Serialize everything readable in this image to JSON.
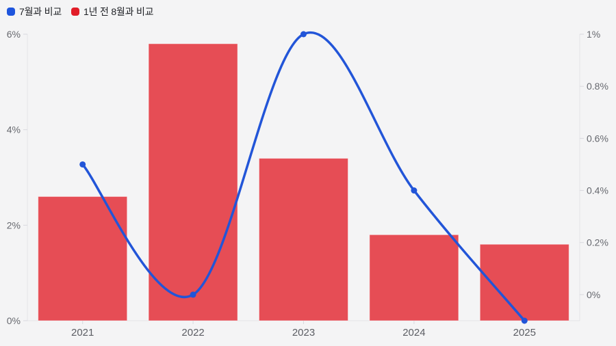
{
  "chart_data": {
    "type": "combo",
    "title": "",
    "categories": [
      "2021",
      "2022",
      "2023",
      "2024",
      "2025"
    ],
    "legend": [
      {
        "label": "7월과 비교",
        "color": "#1e55dd",
        "series": "line"
      },
      {
        "label": "1년 전 8월과 비교",
        "color": "#e11d28",
        "series": "bar"
      }
    ],
    "series": [
      {
        "name": "1년 전 8월과 비교",
        "type": "bar",
        "axis": "left",
        "color": "#e11d28",
        "fill_opacity": 0.78,
        "values": [
          2.6,
          5.8,
          3.4,
          1.8,
          1.6
        ]
      },
      {
        "name": "7월과 비교",
        "type": "line",
        "axis": "right",
        "color": "#2255d8",
        "smooth": true,
        "values": [
          0.5,
          0,
          1,
          0.4,
          -0.1
        ]
      }
    ],
    "left_axis": {
      "min": 0,
      "max": 6,
      "tick_values": [
        0,
        2,
        4,
        6
      ],
      "tick_labels": [
        "0%",
        "2%",
        "4%",
        "6%"
      ]
    },
    "right_axis": {
      "min": -0.1,
      "max": 1,
      "tick_values": [
        0,
        0.2,
        0.4,
        0.6,
        0.8,
        1
      ],
      "tick_labels": [
        "0%",
        "0.2%",
        "0.4%",
        "0.6%",
        "0.8%",
        "1%"
      ]
    },
    "grid": false,
    "legend_position": "top-left",
    "background": "#f4f4f5",
    "axis_line_color": "#e3e3e7",
    "tick_color": "#d9d9de"
  }
}
